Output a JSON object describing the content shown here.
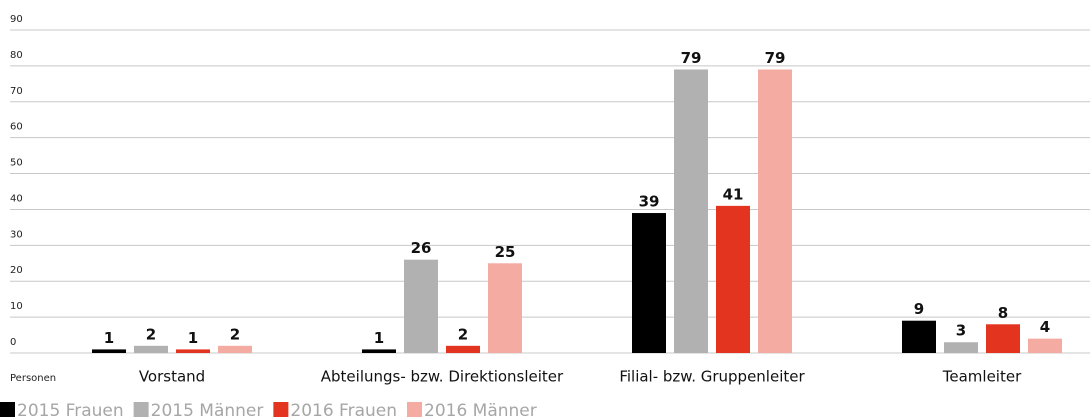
{
  "chart_data": {
    "type": "bar",
    "y_label": "Personen",
    "categories": [
      "Vorstand",
      "Abteilungs- bzw. Direktionsleiter",
      "Filial- bzw. Gruppenleiter",
      "Teamleiter"
    ],
    "series": [
      {
        "name": "2015 Frauen",
        "color": "#000000",
        "values": [
          1,
          1,
          39,
          9
        ]
      },
      {
        "name": "2015 Männer",
        "color": "#b1b1b1",
        "values": [
          2,
          26,
          79,
          3
        ]
      },
      {
        "name": "2016 Frauen",
        "color": "#e2341f",
        "values": [
          1,
          2,
          41,
          8
        ]
      },
      {
        "name": "2016 Männer",
        "color": "#f4aca2",
        "values": [
          2,
          25,
          79,
          4
        ]
      }
    ],
    "ylim": [
      0,
      90
    ],
    "yticks": [
      0,
      10,
      20,
      30,
      40,
      50,
      60,
      70,
      80,
      90
    ],
    "grid": true
  }
}
